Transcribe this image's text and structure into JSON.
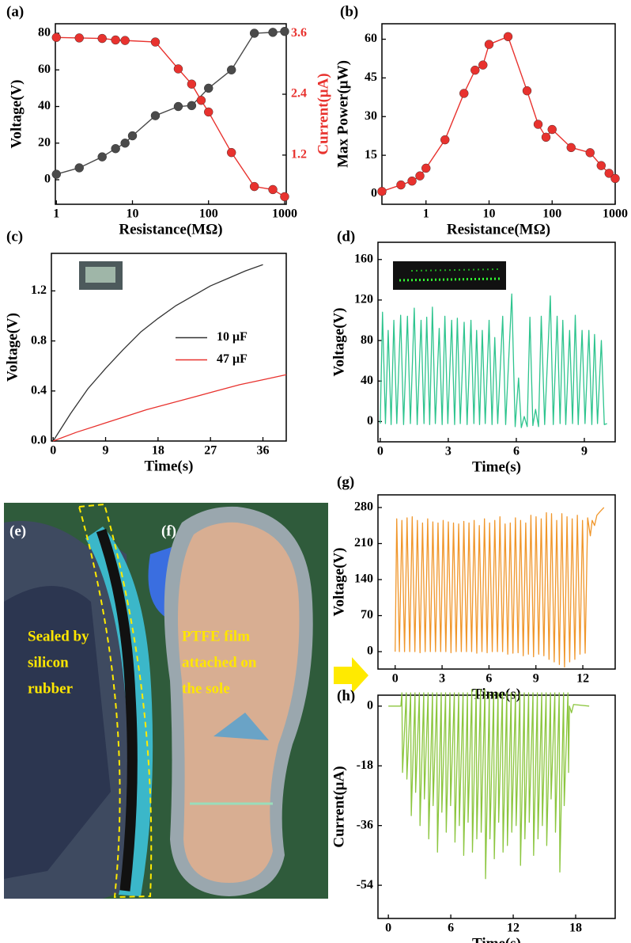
{
  "chart_data": [
    {
      "type": "line",
      "label": "(a)",
      "xlabel": "Resistance(MΩ)",
      "ylabel": "Voltage(V)",
      "y2label": "Current(μA)",
      "xscale": "log",
      "markers": true,
      "xlim": [
        0.97,
        1050
      ],
      "xticks": [
        1,
        10,
        100,
        1000
      ],
      "ylim": [
        -13.4,
        85.2
      ],
      "yticks": [
        0,
        20,
        40,
        60,
        80
      ],
      "y2lim": [
        0.23,
        3.79
      ],
      "y2ticks": [
        1.2,
        2.4,
        3.6
      ],
      "series": [
        {
          "color": "#4a4a4a",
          "x": [
            1,
            2,
            4,
            6,
            8,
            10,
            20,
            40,
            60,
            100,
            200,
            400,
            700,
            1000
          ],
          "values": [
            3,
            6.5,
            12.5,
            17,
            20,
            24,
            35,
            40,
            40.5,
            50,
            60,
            80,
            80.5,
            81
          ]
        },
        {
          "color": "#e8322e",
          "axis": "y2",
          "x": [
            1,
            2,
            4,
            6,
            8,
            20,
            40,
            60,
            80,
            100,
            200,
            400,
            700,
            1000
          ],
          "values": [
            3.52,
            3.51,
            3.5,
            3.47,
            3.46,
            3.43,
            2.9,
            2.6,
            2.28,
            2.05,
            1.25,
            0.58,
            0.52,
            0.38
          ]
        }
      ]
    },
    {
      "type": "line",
      "label": "(b)",
      "xlabel": "Resistance(MΩ)",
      "ylabel": "Max Power(μW)",
      "xscale": "log",
      "markers": true,
      "xlim": [
        0.2,
        1000
      ],
      "xticks": [
        1,
        10,
        100,
        1000
      ],
      "ylim": [
        -4,
        66
      ],
      "yticks": [
        0,
        15,
        30,
        45,
        60
      ],
      "series": [
        {
          "color": "#e8322e",
          "x": [
            0.2,
            0.4,
            0.6,
            0.8,
            1,
            2,
            4,
            6,
            8,
            10,
            20,
            40,
            60,
            80,
            100,
            200,
            400,
            600,
            800,
            1000
          ],
          "values": [
            1,
            3.5,
            5,
            7,
            10,
            21,
            39,
            48,
            50,
            58,
            61,
            40,
            27,
            22,
            25,
            18,
            16,
            11,
            8,
            6
          ]
        }
      ]
    },
    {
      "type": "line",
      "label": "(c)",
      "xlabel": "Time(s)",
      "ylabel": "Voltage(V)",
      "legend": "center-right",
      "xlim": [
        -0.3,
        40
      ],
      "xticks": [
        0,
        9,
        18,
        27,
        36
      ],
      "ylim": [
        0,
        1.5
      ],
      "yticks": [
        {
          "value": 0,
          "label": "0.0"
        },
        {
          "value": 0.4,
          "label": "0.4"
        },
        {
          "value": 0.8,
          "label": "0.8"
        },
        {
          "value": 1.2,
          "label": "1.2"
        }
      ],
      "series": [
        {
          "name": "10 μF",
          "color": "#333333",
          "x": [
            0,
            3,
            6,
            9,
            12,
            15,
            18,
            21,
            24,
            27,
            30,
            33,
            36
          ],
          "values": [
            0,
            0.22,
            0.42,
            0.58,
            0.73,
            0.87,
            0.98,
            1.08,
            1.16,
            1.24,
            1.3,
            1.36,
            1.41
          ]
        },
        {
          "name": "47 μF",
          "color": "#e8322e",
          "x": [
            0,
            4,
            8,
            12,
            16,
            20,
            24,
            28,
            32,
            36,
            40
          ],
          "values": [
            0,
            0.07,
            0.13,
            0.19,
            0.25,
            0.3,
            0.35,
            0.4,
            0.45,
            0.49,
            0.53
          ]
        }
      ]
    },
    {
      "type": "line",
      "label": "(d)",
      "xlabel": "Time(s)",
      "ylabel": "Voltage(V)",
      "xlim": [
        -0.1,
        10.36
      ],
      "xticks": [
        0,
        3,
        6,
        9
      ],
      "ylim": [
        -20,
        177
      ],
      "yticks": [
        0,
        40,
        80,
        120,
        160
      ],
      "series": [
        {
          "color": "#2ec48e",
          "x": [
            0,
            0.1,
            0.23,
            0.35,
            0.48,
            0.6,
            0.73,
            0.9,
            1.03,
            1.2,
            1.33,
            1.5,
            1.63,
            1.8,
            1.93,
            2.05,
            2.18,
            2.3,
            2.43,
            2.6,
            2.73,
            2.85,
            2.98,
            3.15,
            3.28,
            3.4,
            3.53,
            3.7,
            3.83,
            4.0,
            4.13,
            4.25,
            4.38,
            4.5,
            4.63,
            4.8,
            4.93,
            5.05,
            5.18,
            5.4,
            5.53,
            5.8,
            5.95,
            6.1,
            6.22,
            6.35,
            6.48,
            6.6,
            6.73,
            6.85,
            6.98,
            7.1,
            7.25,
            7.5,
            7.63,
            7.8,
            7.93,
            8.05,
            8.18,
            8.35,
            8.48,
            8.6,
            8.73,
            8.9,
            9.03,
            9.2,
            9.33,
            9.45,
            9.58,
            9.75,
            9.88,
            10
          ],
          "values": [
            -2,
            108,
            -2,
            90,
            -3,
            100,
            -2,
            105,
            -3,
            104,
            -2,
            112,
            -3,
            100,
            -2,
            103,
            -3,
            113,
            -2,
            92,
            -3,
            104,
            -2,
            100,
            -3,
            102,
            -2,
            98,
            -3,
            100,
            -2,
            90,
            -3,
            90,
            -2,
            100,
            -3,
            83,
            -2,
            104,
            -3,
            126,
            -5,
            43,
            -6,
            5,
            -5,
            103,
            -4,
            12,
            -5,
            104,
            -3,
            124,
            -3,
            104,
            -2,
            100,
            -3,
            90,
            -2,
            105,
            -3,
            90,
            -2,
            90,
            -3,
            86,
            -2,
            80,
            -3,
            -2
          ]
        }
      ]
    },
    {
      "type": "line",
      "label": "(g)",
      "xlabel": "Time(s)",
      "ylabel": "Voltage(V)",
      "xlim": [
        -1.1,
        14.07
      ],
      "xticks": [
        0,
        3,
        6,
        9,
        12
      ],
      "ylim": [
        -33.8,
        304.6
      ],
      "yticks": [
        0,
        70,
        140,
        210,
        280
      ],
      "series": [
        {
          "color": "#f0962a",
          "x": [
            0,
            0.1,
            0.27,
            0.43,
            0.6,
            0.76,
            0.93,
            1.09,
            1.26,
            1.42,
            1.59,
            1.75,
            1.92,
            2.08,
            2.25,
            2.41,
            2.58,
            2.74,
            2.91,
            3.07,
            3.24,
            3.4,
            3.57,
            3.73,
            3.9,
            4.06,
            4.23,
            4.39,
            4.56,
            4.72,
            4.89,
            5.05,
            5.22,
            5.38,
            5.55,
            5.71,
            5.88,
            6.04,
            6.21,
            6.37,
            6.54,
            6.7,
            6.87,
            7.03,
            7.2,
            7.36,
            7.53,
            7.69,
            7.86,
            8.02,
            8.19,
            8.35,
            8.52,
            8.68,
            8.85,
            9.01,
            9.18,
            9.34,
            9.51,
            9.67,
            9.84,
            10,
            10.17,
            10.33,
            10.5,
            10.66,
            10.83,
            10.99,
            11.16,
            11.32,
            11.49,
            11.65,
            11.82,
            11.98,
            12.15,
            12.31,
            12.48,
            12.6,
            12.75,
            12.9,
            13.1,
            13.35
          ],
          "values": [
            0,
            258,
            0,
            255,
            0,
            260,
            0,
            262,
            0,
            255,
            -2,
            250,
            0,
            258,
            0,
            252,
            0,
            250,
            0,
            255,
            0,
            252,
            -2,
            250,
            0,
            248,
            0,
            253,
            0,
            250,
            0,
            255,
            -3,
            245,
            0,
            258,
            -2,
            250,
            0,
            255,
            0,
            262,
            0,
            248,
            -5,
            250,
            -3,
            260,
            -2,
            255,
            -8,
            250,
            -5,
            265,
            -10,
            262,
            -5,
            258,
            -8,
            270,
            -15,
            268,
            -20,
            255,
            -25,
            268,
            -30,
            262,
            -20,
            258,
            -15,
            265,
            -5,
            255,
            -3,
            260,
            225,
            255,
            245,
            265,
            272,
            280
          ]
        }
      ]
    },
    {
      "type": "line",
      "label": "(h)",
      "xlabel": "Time(s)",
      "ylabel": "Current(μA)",
      "xlim": [
        -1,
        21.8
      ],
      "xticks": [
        0,
        6,
        12,
        18
      ],
      "ylim": [
        -64,
        3.3
      ],
      "yticks": [
        0,
        -18,
        -36,
        -54
      ],
      "series": [
        {
          "color": "#8cc63f",
          "x": [
            0,
            1.2,
            1.3,
            1.36,
            1.72,
            1.78,
            2.14,
            2.2,
            2.56,
            2.62,
            2.98,
            3.04,
            3.4,
            3.46,
            3.82,
            3.88,
            4.24,
            4.3,
            4.66,
            4.72,
            5.08,
            5.14,
            5.5,
            5.56,
            5.92,
            5.98,
            6.34,
            6.4,
            6.76,
            6.82,
            7.18,
            7.24,
            7.6,
            7.66,
            8.02,
            8.08,
            8.44,
            8.5,
            8.86,
            8.92,
            9.28,
            9.34,
            9.7,
            9.76,
            10.12,
            10.18,
            10.54,
            10.6,
            10.96,
            11.02,
            11.38,
            11.44,
            11.8,
            11.86,
            12.22,
            12.28,
            12.64,
            12.7,
            13.06,
            13.12,
            13.48,
            13.54,
            13.9,
            13.96,
            14.32,
            14.38,
            14.74,
            14.8,
            15.16,
            15.22,
            15.58,
            15.64,
            16,
            16.06,
            16.42,
            16.48,
            16.84,
            16.9,
            17.26,
            17.32,
            17.4,
            17.6,
            17.8,
            19.3
          ],
          "values": [
            0,
            0,
            4,
            -20,
            4,
            -22,
            4,
            -33,
            4,
            -26,
            4,
            -36,
            4,
            -28,
            4,
            -40,
            4,
            -30,
            4,
            -44,
            4,
            -32,
            4,
            -38,
            4,
            -30,
            4,
            -41,
            4,
            -36,
            4,
            -45,
            4,
            -35,
            5,
            -44,
            5,
            -40,
            5,
            -38,
            5,
            -52,
            4,
            -40,
            4,
            -46,
            4,
            -35,
            4,
            -44,
            4,
            -42,
            4,
            -38,
            4,
            -36,
            4,
            -48,
            4,
            -40,
            4,
            -35,
            4,
            -45,
            4,
            -40,
            4,
            -36,
            4,
            -42,
            4,
            -28,
            4,
            -38,
            4,
            -50,
            4,
            -30,
            4,
            -20,
            0,
            -2,
            0.5,
            0
          ]
        }
      ]
    }
  ],
  "photo": {
    "labels": [
      "(e)",
      "(f)"
    ],
    "left_text": [
      "Sealed by",
      "silicon",
      "rubber"
    ],
    "right_text": [
      "PTFE film",
      "attached on",
      "the sole"
    ]
  }
}
